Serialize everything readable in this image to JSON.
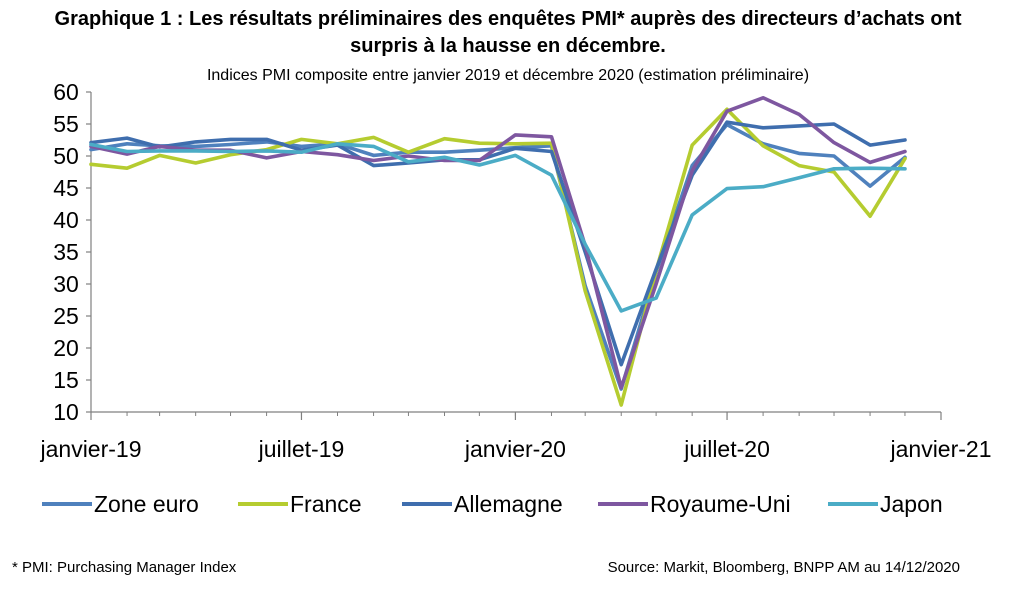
{
  "header": {
    "title_line1": "Graphique 1 : Les résultats préliminaires des enquêtes PMI* auprès des directeurs d’achats ont",
    "title_line2": "surpris à la hausse en décembre.",
    "subtitle": "Indices PMI composite entre janvier 2019 et décembre 2020 (estimation préliminaire)"
  },
  "footer": {
    "note": "* PMI: Purchasing Manager Index",
    "source": "Source: Markit, Bloomberg, BNPP AM au 14/12/2020"
  },
  "chart_data": {
    "type": "line",
    "x": [
      "2019-01",
      "2019-02",
      "2019-03",
      "2019-04",
      "2019-05",
      "2019-06",
      "2019-07",
      "2019-08",
      "2019-09",
      "2019-10",
      "2019-11",
      "2019-12",
      "2020-01",
      "2020-02",
      "2020-03",
      "2020-04",
      "2020-05",
      "2020-06",
      "2020-07",
      "2020-08",
      "2020-09",
      "2020-10",
      "2020-11",
      "2020-12"
    ],
    "x_tick_labels": [
      {
        "at": "2019-01",
        "label": "janvier-19"
      },
      {
        "at": "2019-07",
        "label": "juillet-19"
      },
      {
        "at": "2020-01",
        "label": "janvier-20"
      },
      {
        "at": "2020-07",
        "label": "juillet-20"
      },
      {
        "at": "2021-01",
        "label": "janvier-21"
      }
    ],
    "ylim": [
      10,
      60
    ],
    "y_ticks": [
      10,
      15,
      20,
      25,
      30,
      35,
      40,
      45,
      50,
      55,
      60
    ],
    "grid": false,
    "legend_position": "bottom",
    "series": [
      {
        "name": "Zone euro",
        "color": "#4f81bd",
        "values": [
          51.0,
          51.9,
          51.6,
          51.5,
          51.8,
          52.2,
          51.5,
          51.9,
          50.1,
          50.6,
          50.6,
          50.9,
          51.3,
          51.6,
          29.7,
          13.6,
          31.9,
          48.5,
          54.9,
          51.9,
          50.4,
          50.0,
          45.3,
          49.8
        ]
      },
      {
        "name": "France",
        "color": "#b5cc30",
        "values": [
          48.7,
          48.1,
          50.1,
          48.9,
          50.2,
          51.0,
          52.6,
          51.9,
          52.9,
          50.6,
          52.7,
          52.0,
          51.9,
          52.0,
          28.9,
          11.1,
          32.1,
          51.7,
          57.3,
          51.6,
          48.5,
          47.5,
          40.6,
          49.6
        ]
      },
      {
        "name": "Allemagne",
        "color": "#3f6eae",
        "values": [
          52.1,
          52.8,
          51.4,
          52.2,
          52.6,
          52.6,
          50.9,
          51.7,
          48.5,
          48.9,
          49.4,
          49.4,
          51.2,
          50.7,
          35.0,
          17.4,
          32.3,
          47.0,
          55.3,
          54.4,
          54.7,
          55.0,
          51.7,
          52.5
        ]
      },
      {
        "name": "Royaume-Uni",
        "color": "#7e57a0",
        "values": [
          51.5,
          50.3,
          51.5,
          50.9,
          50.9,
          49.7,
          50.7,
          50.2,
          49.3,
          50.0,
          49.3,
          49.3,
          53.3,
          53.0,
          36.0,
          13.8,
          30.0,
          47.7,
          57.0,
          59.1,
          56.5,
          52.1,
          49.0,
          50.7
        ]
      },
      {
        "name": "Japon",
        "color": "#4bacc6",
        "values": [
          51.8,
          50.7,
          50.8,
          50.8,
          50.7,
          50.8,
          50.6,
          51.9,
          51.5,
          49.1,
          49.8,
          48.6,
          50.1,
          47.0,
          36.2,
          25.8,
          27.8,
          40.8,
          44.9,
          45.2,
          46.6,
          48.0,
          48.1,
          48.0
        ]
      }
    ]
  }
}
